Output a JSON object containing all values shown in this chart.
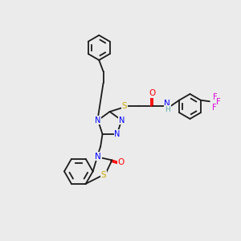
{
  "background_color": "#ebebeb",
  "bond_color": "#1a1a1a",
  "N_color": "#0000ff",
  "O_color": "#ff0000",
  "S_color": "#ccaa00",
  "F_color": "#dd00dd",
  "H_color": "#5aabab",
  "figsize": [
    3.0,
    3.0
  ],
  "dpi": 100,
  "xlim": [
    0,
    10
  ],
  "ylim": [
    0,
    10
  ]
}
